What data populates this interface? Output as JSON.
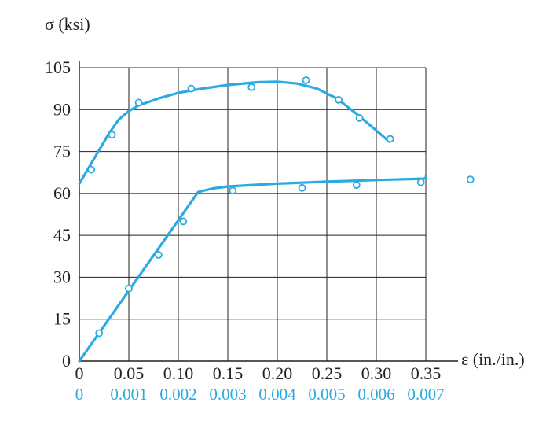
{
  "chart_data": {
    "type": "line",
    "ylabel": "σ (ksi)",
    "xlabel": "ε (in./in.)",
    "y_ticks": [
      "0",
      "15",
      "30",
      "45",
      "60",
      "75",
      "90",
      "105"
    ],
    "x_ticks_upper": [
      "0",
      "0.05",
      "0.10",
      "0.15",
      "0.20",
      "0.25",
      "0.30",
      "0.35"
    ],
    "x_ticks_lower": [
      "0",
      "0.001",
      "0.002",
      "0.003",
      "0.004",
      "0.005",
      "0.006",
      "0.007"
    ],
    "xlim_upper": [
      0,
      0.35
    ],
    "xlim_lower": [
      0,
      0.007
    ],
    "ylim": [
      0,
      112
    ],
    "grid": true,
    "colors": {
      "curve": "#29abe2",
      "axis": "#231f20",
      "lower_axis_text": "#29abe2"
    },
    "series": [
      {
        "axis": "upper",
        "points": [
          {
            "x": 0.012,
            "y": 68.5
          },
          {
            "x": 0.033,
            "y": 81
          },
          {
            "x": 0.06,
            "y": 92.5
          },
          {
            "x": 0.113,
            "y": 97.5
          },
          {
            "x": 0.174,
            "y": 98
          },
          {
            "x": 0.229,
            "y": 100.5
          },
          {
            "x": 0.262,
            "y": 93.5
          },
          {
            "x": 0.283,
            "y": 87
          },
          {
            "x": 0.314,
            "y": 79.5
          }
        ],
        "curve": [
          [
            0,
            63.5
          ],
          [
            0.01,
            69.5
          ],
          [
            0.02,
            75.5
          ],
          [
            0.03,
            81.5
          ],
          [
            0.04,
            86.5
          ],
          [
            0.05,
            89.5
          ],
          [
            0.06,
            91.5
          ],
          [
            0.08,
            94
          ],
          [
            0.1,
            96
          ],
          [
            0.12,
            97.3
          ],
          [
            0.15,
            98.8
          ],
          [
            0.18,
            99.8
          ],
          [
            0.2,
            100
          ],
          [
            0.22,
            99.3
          ],
          [
            0.24,
            97.5
          ],
          [
            0.26,
            94
          ],
          [
            0.28,
            88.5
          ],
          [
            0.3,
            82.5
          ],
          [
            0.313,
            78.5
          ]
        ]
      },
      {
        "axis": "lower",
        "points": [
          {
            "x": 0.0004,
            "y": 10
          },
          {
            "x": 0.001,
            "y": 26
          },
          {
            "x": 0.0016,
            "y": 38
          },
          {
            "x": 0.0021,
            "y": 50
          },
          {
            "x": 0.0031,
            "y": 61
          },
          {
            "x": 0.0045,
            "y": 62
          },
          {
            "x": 0.0056,
            "y": 63
          },
          {
            "x": 0.0069,
            "y": 64
          },
          {
            "x": 0.0079,
            "y": 65
          }
        ],
        "curve": [
          [
            0,
            0
          ],
          [
            0.0024,
            60.5
          ],
          [
            0.0027,
            61.8
          ],
          [
            0.003,
            62.5
          ],
          [
            0.004,
            63.5
          ],
          [
            0.005,
            64.2
          ],
          [
            0.006,
            64.8
          ],
          [
            0.007,
            65.3
          ],
          [
            0.008,
            65.7
          ],
          [
            0.0088,
            66
          ]
        ]
      }
    ]
  }
}
